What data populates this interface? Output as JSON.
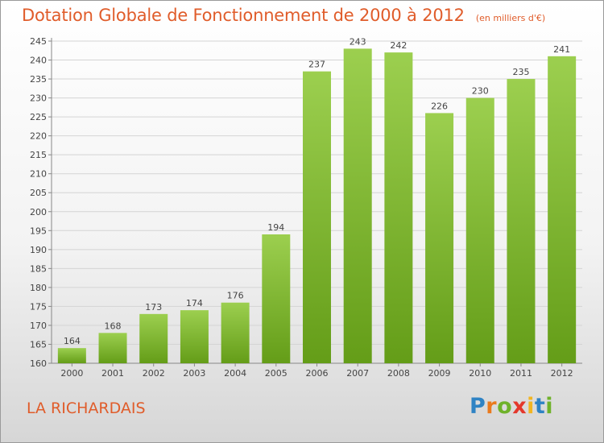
{
  "chart_data": {
    "type": "bar",
    "title": "Dotation Globale de Fonctionnement de 2000 à 2012",
    "unit": "(en milliers d'€)",
    "categories": [
      "2000",
      "2001",
      "2002",
      "2003",
      "2004",
      "2005",
      "2006",
      "2007",
      "2008",
      "2009",
      "2010",
      "2011",
      "2012"
    ],
    "values": [
      164,
      168,
      173,
      174,
      176,
      194,
      237,
      243,
      242,
      226,
      230,
      235,
      241
    ],
    "ylim": [
      160,
      245
    ],
    "yticks": [
      160,
      165,
      170,
      175,
      180,
      185,
      190,
      195,
      200,
      205,
      210,
      215,
      220,
      225,
      230,
      235,
      240,
      245
    ],
    "xlabel": "",
    "ylabel": "",
    "grid": true,
    "bar_color_top": "#9ccf4f",
    "bar_color_bottom": "#649d18"
  },
  "footer": {
    "commune": "LA RICHARDAIS",
    "logo_letters": [
      {
        "ch": "P",
        "color": "#2f83c4"
      },
      {
        "ch": "r",
        "color": "#ea7a1d"
      },
      {
        "ch": "o",
        "color": "#6fb22a"
      },
      {
        "ch": "x",
        "color": "#e4382c"
      },
      {
        "ch": "i",
        "color": "#f2b521"
      },
      {
        "ch": "t",
        "color": "#2f83c4"
      },
      {
        "ch": "i",
        "color": "#6fb22a"
      }
    ]
  }
}
